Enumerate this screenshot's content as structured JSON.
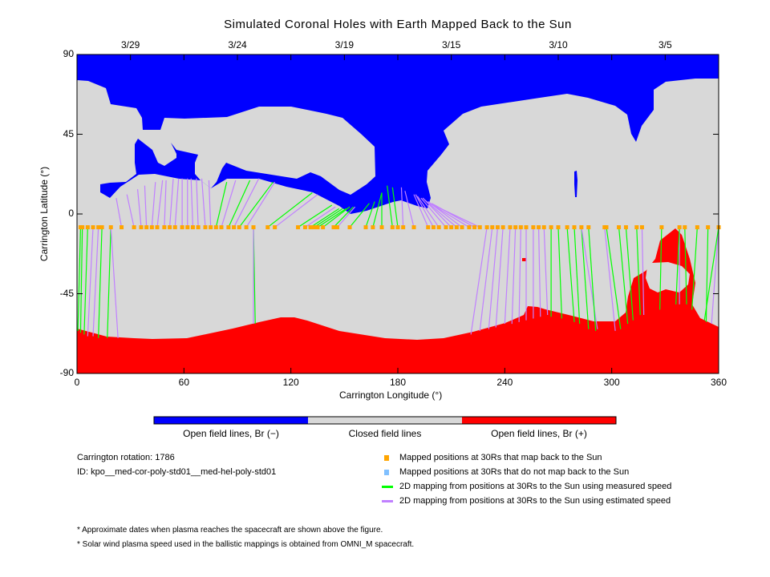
{
  "chart_data": {
    "type": "map",
    "title": "Simulated Coronal Holes with Earth Mapped Back to the Sun",
    "xlabel": "Carrington Longitude (°)",
    "ylabel": "Carrington Latitude (°)",
    "xlim": [
      0,
      360
    ],
    "ylim": [
      -90,
      90
    ],
    "x_ticks": [
      "0",
      "60",
      "120",
      "180",
      "240",
      "300",
      "360"
    ],
    "x_tick_values": [
      0,
      60,
      120,
      180,
      240,
      300,
      360
    ],
    "y_ticks": [
      "90",
      "45",
      "0",
      "-45",
      "-90"
    ],
    "y_tick_values": [
      90,
      45,
      0,
      -45,
      -90
    ],
    "top_dates": [
      "3/29",
      "3/24",
      "3/19",
      "3/15",
      "3/10",
      "3/5"
    ],
    "top_date_longitudes": [
      30,
      90,
      150,
      210,
      270,
      330
    ],
    "colors": {
      "open_negative": "#0000FF",
      "closed": "#D8D8D8",
      "open_positive": "#FF0000",
      "mapped_point": "#FFA500",
      "unmapped_point": "#80C0FF",
      "measured_speed": "#00FF00",
      "estimated_speed": "#C080FF"
    },
    "point_latitude": -7.5,
    "mapped_point_longitudes": [
      2,
      3,
      6,
      9,
      12,
      14,
      19,
      25,
      32,
      36,
      39,
      42,
      45,
      49,
      52,
      55,
      59,
      62,
      65,
      68,
      72,
      75,
      78,
      81,
      85,
      88,
      91,
      95,
      99,
      107,
      111,
      124,
      128,
      131,
      133,
      135,
      138,
      144,
      146,
      153,
      162,
      166,
      171,
      177,
      180,
      183,
      189,
      197,
      200,
      203,
      207,
      210,
      213,
      216,
      220,
      223,
      226,
      230,
      233,
      236,
      239,
      243,
      246,
      249,
      252,
      256,
      259,
      262,
      266,
      270,
      275,
      279,
      283,
      287,
      296,
      297,
      304,
      308,
      314,
      317,
      328,
      338,
      341,
      348,
      354,
      360
    ],
    "mapping_fields": [
      "point_lon",
      "foot_lon",
      "foot_lat",
      "speed"
    ],
    "mappings": [
      [
        25,
        22,
        9,
        "e"
      ],
      [
        32,
        28,
        11,
        "e"
      ],
      [
        36,
        34,
        14,
        "e"
      ],
      [
        39,
        38,
        16,
        "e"
      ],
      [
        42,
        44,
        18,
        "e"
      ],
      [
        45,
        48,
        19,
        "e"
      ],
      [
        49,
        50,
        19,
        "e"
      ],
      [
        52,
        54,
        20,
        "e"
      ],
      [
        55,
        57,
        20,
        "e"
      ],
      [
        59,
        59,
        20,
        "e"
      ],
      [
        62,
        62,
        20,
        "e"
      ],
      [
        65,
        64,
        20,
        "e"
      ],
      [
        68,
        67,
        20,
        "e"
      ],
      [
        72,
        70,
        20,
        "e"
      ],
      [
        75,
        74,
        19,
        "e"
      ],
      [
        78,
        84,
        18,
        "m"
      ],
      [
        81,
        89,
        19,
        "e"
      ],
      [
        85,
        97,
        19,
        "m"
      ],
      [
        88,
        102,
        20,
        "e"
      ],
      [
        91,
        110,
        18,
        "m"
      ],
      [
        95,
        111,
        18,
        "e"
      ],
      [
        107,
        132,
        12,
        "m"
      ],
      [
        111,
        135,
        11,
        "e"
      ],
      [
        124,
        143,
        5,
        "m"
      ],
      [
        128,
        145,
        4,
        "e"
      ],
      [
        131,
        147,
        3,
        "m"
      ],
      [
        133,
        149,
        3,
        "m"
      ],
      [
        135,
        151,
        3,
        "m"
      ],
      [
        138,
        153,
        4,
        "m"
      ],
      [
        144,
        155,
        4,
        "m"
      ],
      [
        146,
        156,
        4,
        "e"
      ],
      [
        153,
        164,
        6,
        "m"
      ],
      [
        162,
        167,
        7,
        "m"
      ],
      [
        166,
        171,
        12,
        "m"
      ],
      [
        171,
        171,
        12,
        "m"
      ],
      [
        177,
        174,
        16,
        "m"
      ],
      [
        180,
        177,
        15,
        "m"
      ],
      [
        183,
        182,
        15,
        "e"
      ],
      [
        189,
        184,
        13,
        "e"
      ],
      [
        197,
        189,
        11,
        "e"
      ],
      [
        200,
        190,
        11,
        "e"
      ],
      [
        203,
        191,
        10,
        "e"
      ],
      [
        207,
        193,
        9,
        "e"
      ],
      [
        210,
        194,
        9,
        "e"
      ],
      [
        213,
        195,
        8,
        "e"
      ],
      [
        216,
        197,
        7,
        "e"
      ],
      [
        220,
        198,
        6,
        "e"
      ],
      [
        223,
        199,
        6,
        "e"
      ],
      [
        226,
        200,
        5,
        "e"
      ],
      [
        2,
        0.5,
        -66,
        "m"
      ],
      [
        3,
        2,
        -67,
        "m"
      ],
      [
        6,
        4,
        -68,
        "m"
      ],
      [
        9,
        6,
        -69,
        "e"
      ],
      [
        12,
        9,
        -69,
        "e"
      ],
      [
        14,
        12,
        -70,
        "m"
      ],
      [
        19,
        17,
        -70,
        "m"
      ],
      [
        19,
        23,
        -70,
        "e"
      ],
      [
        99,
        100,
        -62,
        "m"
      ],
      [
        99,
        99,
        -62,
        "e"
      ],
      [
        230,
        221,
        -68,
        "e"
      ],
      [
        233,
        226,
        -66,
        "e"
      ],
      [
        236,
        231,
        -65,
        "e"
      ],
      [
        239,
        235,
        -64,
        "e"
      ],
      [
        243,
        240,
        -62,
        "e"
      ],
      [
        246,
        244,
        -62,
        "e"
      ],
      [
        249,
        248,
        -61,
        "e"
      ],
      [
        252,
        252,
        -60,
        "e"
      ],
      [
        256,
        256,
        -59,
        "e"
      ],
      [
        259,
        260,
        -58,
        "e"
      ],
      [
        262,
        264,
        -57,
        "e"
      ],
      [
        266,
        266,
        -58,
        "m"
      ],
      [
        270,
        272,
        -59,
        "m"
      ],
      [
        275,
        279,
        -61,
        "m"
      ],
      [
        279,
        282,
        -62,
        "m"
      ],
      [
        283,
        287,
        -65,
        "m"
      ],
      [
        283,
        292,
        -65,
        "e"
      ],
      [
        287,
        291,
        -66,
        "m"
      ],
      [
        296,
        302,
        -66,
        "e"
      ],
      [
        297,
        305,
        -65,
        "m"
      ],
      [
        304,
        309,
        -62,
        "m"
      ],
      [
        308,
        312,
        -60,
        "m"
      ],
      [
        314,
        316,
        -57,
        "m"
      ],
      [
        317,
        318,
        -57,
        "e"
      ],
      [
        328,
        327,
        -54,
        "m"
      ],
      [
        338,
        338,
        -51,
        "e"
      ],
      [
        338,
        336,
        -51,
        "m"
      ],
      [
        341,
        342,
        -51,
        "m"
      ],
      [
        348,
        345,
        -54,
        "m"
      ],
      [
        354,
        353,
        -61,
        "m"
      ],
      [
        360,
        356,
        -62,
        "e"
      ],
      [
        360,
        352,
        -60,
        "m"
      ]
    ],
    "colorbar_labels": [
      "Open field lines, Br (−)",
      "Closed field lines",
      "Open field lines, Br (+)"
    ]
  },
  "info": {
    "rotation": "Carrington rotation: 1786",
    "id": "ID: kpo__med-cor-poly-std01__med-hel-poly-std01"
  },
  "legend": {
    "mapped": "Mapped positions at 30Rs that map back to the Sun",
    "unmapped": "Mapped positions at 30Rs that do not map back to the Sun",
    "measured": "2D mapping from positions at 30Rs to the Sun using measured speed",
    "estimated": "2D mapping from positions at 30Rs to the Sun using estimated speed"
  },
  "notes": [
    "* Approximate dates when plasma reaches the spacecraft are shown above the figure.",
    "* Solar wind plasma speed used in the ballistic mappings is obtained from OMNI_M spacecraft."
  ]
}
